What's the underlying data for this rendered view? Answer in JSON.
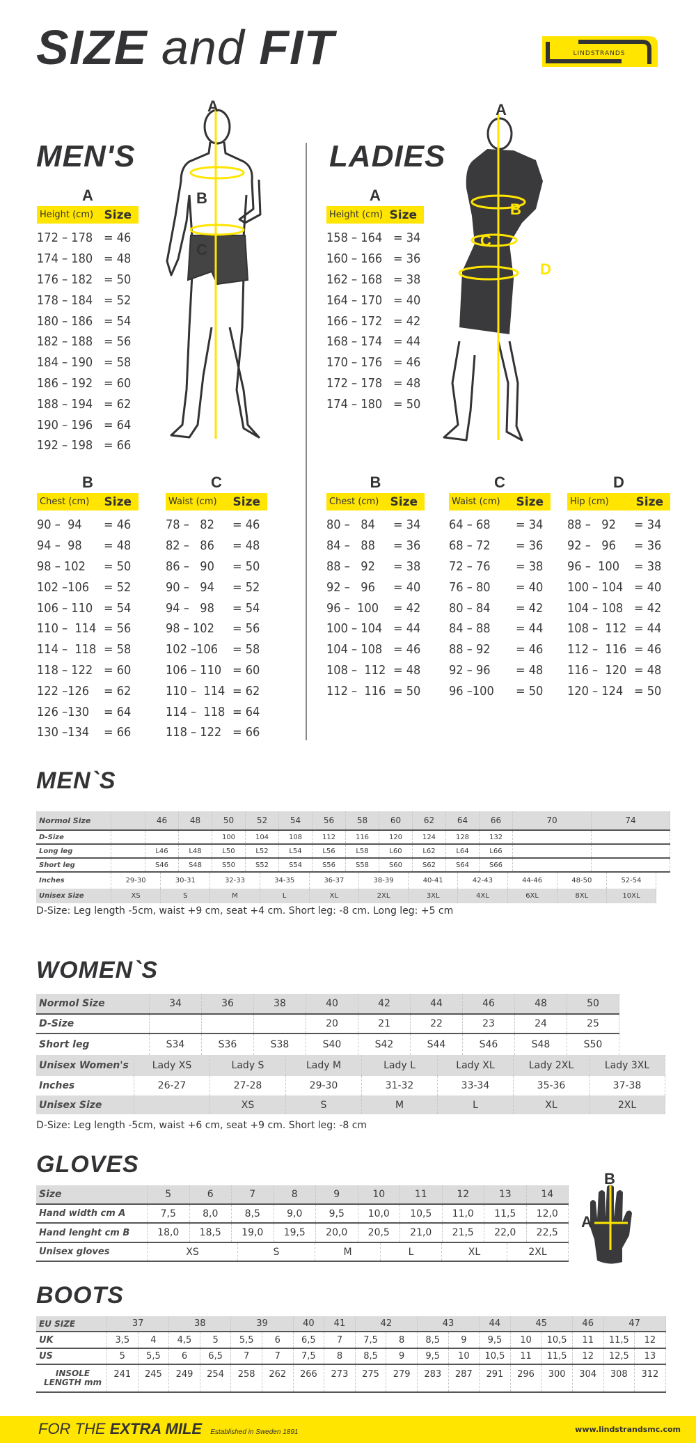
{
  "title": {
    "size": "SIZE",
    "and": "and",
    "fit": "FIT"
  },
  "logo": {
    "text": "LINDSTRANDS"
  },
  "colors": {
    "accent": "#FFE500",
    "text": "#333336",
    "table_header": "#DCDCDC"
  },
  "mens_body": {
    "heading": "MEN'S",
    "figure_labels": {
      "a": "A",
      "b": "B",
      "c": "C"
    },
    "a": {
      "letter": "A",
      "header_label": "Height (cm)",
      "header_size": "Size",
      "rows": [
        {
          "range": "172 – 178",
          "size": "= 46"
        },
        {
          "range": "174 – 180",
          "size": "= 48"
        },
        {
          "range": "176 – 182",
          "size": "= 50"
        },
        {
          "range": "178 – 184",
          "size": "= 52"
        },
        {
          "range": "180 – 186",
          "size": "= 54"
        },
        {
          "range": "182 – 188",
          "size": "= 56"
        },
        {
          "range": "184 – 190",
          "size": "= 58"
        },
        {
          "range": "186 – 192",
          "size": "= 60"
        },
        {
          "range": "188 – 194",
          "size": "= 62"
        },
        {
          "range": "190 – 196",
          "size": "= 64"
        },
        {
          "range": "192 – 198",
          "size": "= 66"
        }
      ]
    },
    "b": {
      "letter": "B",
      "header_label": "Chest (cm)",
      "header_size": "Size",
      "rows": [
        {
          "range": "90 –  94",
          "size": "= 46"
        },
        {
          "range": "94 –  98",
          "size": "= 48"
        },
        {
          "range": "98 – 102",
          "size": "= 50"
        },
        {
          "range": "102 –106",
          "size": "= 52"
        },
        {
          "range": "106 – 110",
          "size": "= 54"
        },
        {
          "range": "110 –  114",
          "size": "= 56"
        },
        {
          "range": "114 –  118",
          "size": "= 58"
        },
        {
          "range": "118 – 122",
          "size": "= 60"
        },
        {
          "range": "122 –126",
          "size": "= 62"
        },
        {
          "range": "126 –130",
          "size": "= 64"
        },
        {
          "range": "130 –134",
          "size": "= 66"
        }
      ]
    },
    "c": {
      "letter": "C",
      "header_label": "Waist (cm)",
      "header_size": "Size",
      "rows": [
        {
          "range": "78 –   82",
          "size": "= 46"
        },
        {
          "range": "82 –   86",
          "size": "= 48"
        },
        {
          "range": "86 –   90",
          "size": "= 50"
        },
        {
          "range": "90 –   94",
          "size": "= 52"
        },
        {
          "range": "94 –   98",
          "size": "= 54"
        },
        {
          "range": "98 – 102",
          "size": "= 56"
        },
        {
          "range": "102 –106",
          "size": "= 58"
        },
        {
          "range": "106 – 110",
          "size": "= 60"
        },
        {
          "range": "110 –  114",
          "size": "= 62"
        },
        {
          "range": "114 –  118",
          "size": "= 64"
        },
        {
          "range": "118 – 122",
          "size": "= 66"
        }
      ]
    }
  },
  "ladies_body": {
    "heading": "LADIES",
    "figure_labels": {
      "a": "A",
      "b": "B",
      "c": "C",
      "d": "D"
    },
    "a": {
      "letter": "A",
      "header_label": "Height (cm)",
      "header_size": "Size",
      "rows": [
        {
          "range": "158 – 164",
          "size": "= 34"
        },
        {
          "range": "160 – 166",
          "size": "= 36"
        },
        {
          "range": "162 – 168",
          "size": "= 38"
        },
        {
          "range": "164 – 170",
          "size": "= 40"
        },
        {
          "range": "166 – 172",
          "size": "= 42"
        },
        {
          "range": "168 – 174",
          "size": "= 44"
        },
        {
          "range": "170 – 176",
          "size": "= 46"
        },
        {
          "range": "172 – 178",
          "size": "= 48"
        },
        {
          "range": "174 – 180",
          "size": "= 50"
        }
      ]
    },
    "b": {
      "letter": "B",
      "header_label": "Chest (cm)",
      "header_size": "Size",
      "rows": [
        {
          "range": "80 –   84",
          "size": "= 34"
        },
        {
          "range": "84 –   88",
          "size": "= 36"
        },
        {
          "range": "88 –   92",
          "size": "= 38"
        },
        {
          "range": "92 –   96",
          "size": "= 40"
        },
        {
          "range": "96 –  100",
          "size": "= 42"
        },
        {
          "range": "100 – 104",
          "size": "= 44"
        },
        {
          "range": "104 – 108",
          "size": "= 46"
        },
        {
          "range": "108 –  112",
          "size": "= 48"
        },
        {
          "range": "112 –  116",
          "size": "= 50"
        }
      ]
    },
    "c": {
      "letter": "C",
      "header_label": "Waist (cm)",
      "header_size": "Size",
      "rows": [
        {
          "range": "64 – 68",
          "size": "= 34"
        },
        {
          "range": "68 – 72",
          "size": "= 36"
        },
        {
          "range": "72 – 76",
          "size": "= 38"
        },
        {
          "range": "76 – 80",
          "size": "= 40"
        },
        {
          "range": "80 – 84",
          "size": "= 42"
        },
        {
          "range": "84 – 88",
          "size": "= 44"
        },
        {
          "range": "88 – 92",
          "size": "= 46"
        },
        {
          "range": "92 – 96",
          "size": "= 48"
        },
        {
          "range": "96 –100",
          "size": "= 50"
        }
      ]
    },
    "d": {
      "letter": "D",
      "header_label": "Hip (cm)",
      "header_size": "Size",
      "rows": [
        {
          "range": "88 –   92",
          "size": "= 34"
        },
        {
          "range": "92 –   96",
          "size": "= 36"
        },
        {
          "range": "96 –  100",
          "size": "= 38"
        },
        {
          "range": "100 – 104",
          "size": "= 40"
        },
        {
          "range": "104 – 108",
          "size": "= 42"
        },
        {
          "range": "108 –  112",
          "size": "= 44"
        },
        {
          "range": "112 –  116",
          "size": "= 46"
        },
        {
          "range": "116 –  120",
          "size": "= 48"
        },
        {
          "range": "120 – 124",
          "size": "= 50"
        }
      ]
    }
  },
  "mens_table": {
    "heading": "MEN`S",
    "rows": [
      {
        "label": "Normol Size",
        "cells": [
          "",
          "46",
          "48",
          "50",
          "52",
          "54",
          "56",
          "58",
          "60",
          "62",
          "64",
          "66",
          "70",
          "74"
        ]
      },
      {
        "label": "D-Size",
        "cells": [
          "",
          "",
          "",
          "100",
          "104",
          "108",
          "112",
          "116",
          "120",
          "124",
          "128",
          "132",
          "",
          ""
        ]
      },
      {
        "label": "Long leg",
        "cells": [
          "",
          "L46",
          "L48",
          "L50",
          "L52",
          "L54",
          "L56",
          "L58",
          "L60",
          "L62",
          "L64",
          "L66",
          "",
          ""
        ]
      },
      {
        "label": "Short leg",
        "cells": [
          "",
          "S46",
          "S48",
          "S50",
          "S52",
          "S54",
          "S56",
          "S58",
          "S60",
          "S62",
          "S64",
          "S66",
          "",
          ""
        ]
      },
      {
        "label": "Inches",
        "cells": [
          "29-30",
          "30-31",
          "32-33",
          "34-35",
          "36-37",
          "38-39",
          "40-41",
          "42-43",
          "44-46",
          "48-50",
          "52-54"
        ]
      },
      {
        "label": "Unisex Size",
        "cells": [
          "XS",
          "S",
          "M",
          "L",
          "XL",
          "2XL",
          "3XL",
          "4XL",
          "6XL",
          "8XL",
          "10XL"
        ]
      }
    ],
    "note": "D-Size: Leg length -5cm, waist +9 cm, seat +4 cm. Short leg: -8 cm. Long leg: +5 cm"
  },
  "womens_table": {
    "heading": "WOMEN`S",
    "rows": [
      {
        "label": "Normol Size",
        "cells": [
          "34",
          "36",
          "38",
          "40",
          "42",
          "44",
          "46",
          "48",
          "50"
        ]
      },
      {
        "label": "D-Size",
        "cells": [
          "",
          "",
          "",
          "20",
          "21",
          "22",
          "23",
          "24",
          "25"
        ]
      },
      {
        "label": "Short leg",
        "cells": [
          "S34",
          "S36",
          "S38",
          "S40",
          "S42",
          "S44",
          "S46",
          "S48",
          "S50"
        ]
      },
      {
        "label": "Unisex Women's",
        "cells": [
          "Lady XS",
          "Lady S",
          "Lady M",
          "Lady L",
          "Lady XL",
          "Lady 2XL",
          "Lady 3XL"
        ]
      },
      {
        "label": "Inches",
        "cells": [
          "26-27",
          "27-28",
          "29-30",
          "31-32",
          "33-34",
          "35-36",
          "37-38"
        ]
      },
      {
        "label": "Unisex Size",
        "cells": [
          "",
          "XS",
          "S",
          "M",
          "L",
          "XL",
          "2XL"
        ]
      }
    ],
    "note": "D-Size: Leg length -5cm, waist +6 cm, seat +9 cm. Short leg: -8 cm"
  },
  "gloves_table": {
    "heading": "GLOVES",
    "hand_labels": {
      "a": "A",
      "b": "B"
    },
    "rows": [
      {
        "label": "Size",
        "cells": [
          "5",
          "6",
          "7",
          "8",
          "9",
          "10",
          "11",
          "12",
          "13",
          "14"
        ]
      },
      {
        "label": "Hand width cm A",
        "cells": [
          "7,5",
          "8,0",
          "8,5",
          "9,0",
          "9,5",
          "10,0",
          "10,5",
          "11,0",
          "11,5",
          "12,0"
        ]
      },
      {
        "label": "Hand lenght cm B",
        "cells": [
          "18,0",
          "18,5",
          "19,0",
          "19,5",
          "20,0",
          "20,5",
          "21,0",
          "21,5",
          "22,0",
          "22,5"
        ]
      },
      {
        "label": "Unisex gloves",
        "cells": [
          "XS",
          "S",
          "M",
          "L",
          "XL",
          "2XL"
        ]
      }
    ]
  },
  "boots_table": {
    "heading": "BOOTS",
    "rows": [
      {
        "label": "EU SIZE",
        "cells": [
          "37",
          "38",
          "39",
          "40",
          "41",
          "42",
          "43",
          "44",
          "45",
          "46",
          "47"
        ]
      },
      {
        "label": "UK",
        "cells": [
          "3,5",
          "4",
          "4,5",
          "5",
          "5,5",
          "6",
          "6,5",
          "7",
          "7,5",
          "8",
          "8,5",
          "9",
          "9,5",
          "10",
          "10,5",
          "11",
          "11,5",
          "12"
        ]
      },
      {
        "label": "US",
        "cells": [
          "5",
          "5,5",
          "6",
          "6,5",
          "7",
          "7",
          "7,5",
          "8",
          "8,5",
          "9",
          "9,5",
          "10",
          "10,5",
          "11",
          "11,5",
          "12",
          "12,5",
          "13"
        ]
      },
      {
        "label": "INSOLE LENGTH mm",
        "cells": [
          "241",
          "245",
          "249",
          "254",
          "258",
          "262",
          "266",
          "273",
          "275",
          "279",
          "283",
          "287",
          "291",
          "296",
          "300",
          "304",
          "308",
          "312"
        ]
      }
    ]
  },
  "footer": {
    "for_the": "FOR THE",
    "extra_mile": "EXTRA MILE",
    "established": "Established in Sweden 1891",
    "url": "www.lindstrandsmc.com"
  }
}
